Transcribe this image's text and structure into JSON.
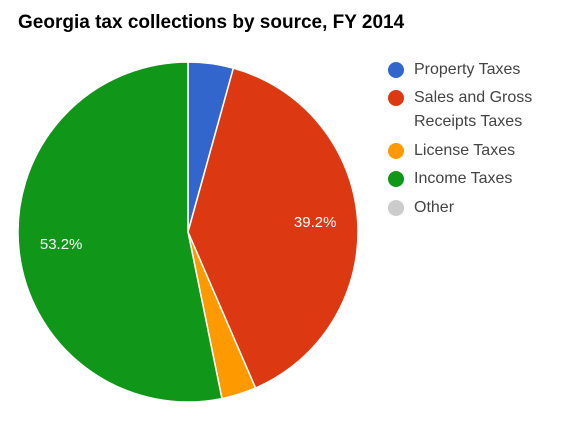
{
  "chart_data": {
    "type": "pie",
    "title": "Georgia tax collections by source, FY 2014",
    "categories": [
      "Property Taxes",
      "Sales and Gross Receipts Taxes",
      "License Taxes",
      "Income Taxes",
      "Other"
    ],
    "values": [
      4.3,
      39.2,
      3.3,
      53.2,
      0
    ],
    "value_labels": [
      null,
      "39.2%",
      null,
      "53.2%",
      null
    ],
    "colors": [
      "#3366cc",
      "#dc3912",
      "#ff9900",
      "#109618",
      "#cccccc"
    ],
    "legend": "right"
  }
}
